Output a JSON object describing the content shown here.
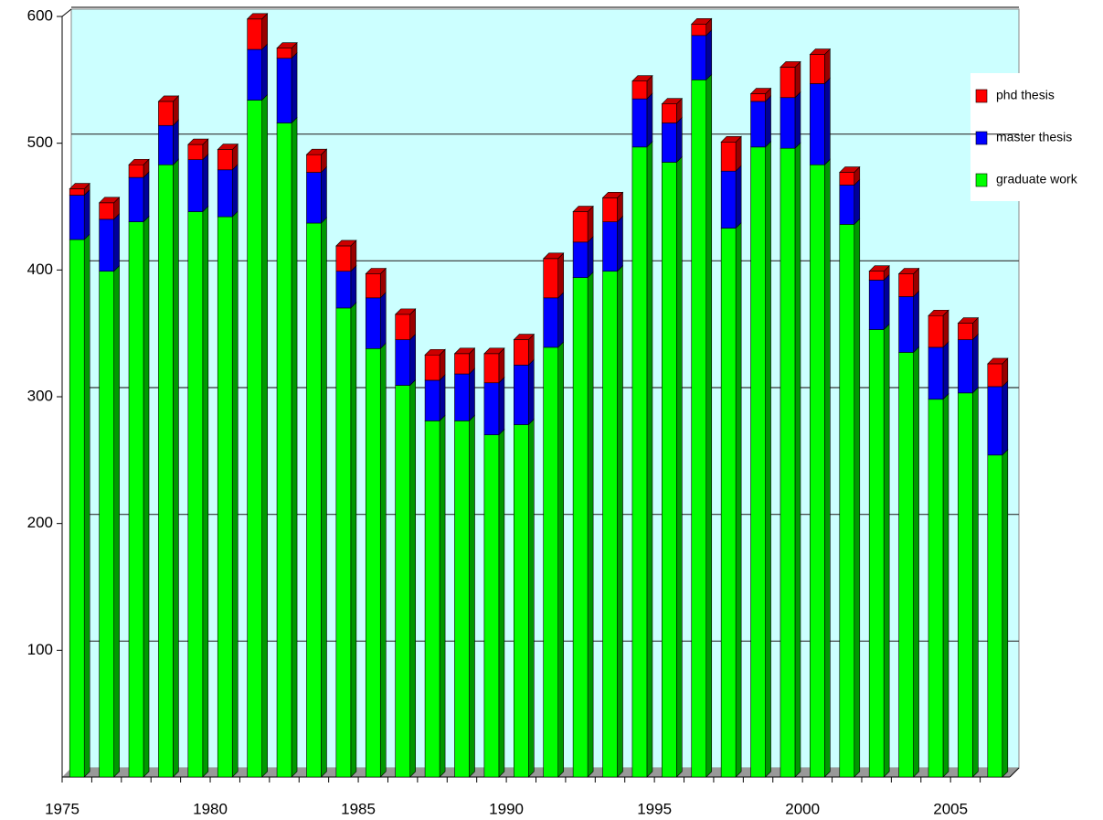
{
  "chart_data": {
    "type": "bar",
    "stacked": true,
    "categories": [
      "1975",
      null,
      null,
      null,
      null,
      "1980",
      null,
      null,
      null,
      null,
      "1985",
      null,
      null,
      null,
      null,
      "1990",
      null,
      null,
      null,
      null,
      "1995",
      null,
      null,
      null,
      null,
      "2000",
      null,
      null,
      null,
      null,
      "2005",
      null
    ],
    "series": [
      {
        "name": "graduate work",
        "color": "#00ff00",
        "values": [
          424,
          399,
          438,
          483,
          446,
          442,
          534,
          516,
          437,
          370,
          338,
          309,
          281,
          281,
          270,
          278,
          339,
          394,
          399,
          497,
          485,
          550,
          433,
          497,
          496,
          483,
          436,
          353,
          335,
          298,
          303,
          254
        ]
      },
      {
        "name": "master thesis",
        "color": "#0000ff",
        "values": [
          35,
          41,
          35,
          31,
          41,
          37,
          40,
          51,
          40,
          29,
          40,
          36,
          32,
          37,
          41,
          47,
          39,
          28,
          39,
          38,
          31,
          35,
          45,
          36,
          40,
          64,
          31,
          39,
          44,
          41,
          42,
          54
        ]
      },
      {
        "name": "phd thesis",
        "color": "#ff0000",
        "values": [
          5,
          13,
          10,
          19,
          12,
          16,
          24,
          8,
          14,
          20,
          19,
          20,
          20,
          16,
          23,
          20,
          31,
          24,
          19,
          14,
          15,
          9,
          23,
          6,
          24,
          23,
          10,
          7,
          18,
          25,
          13,
          18
        ]
      }
    ],
    "ylim": [
      0,
      600
    ],
    "yticks": [
      100,
      200,
      300,
      400,
      500,
      600
    ],
    "grid": true,
    "legend": "right"
  }
}
